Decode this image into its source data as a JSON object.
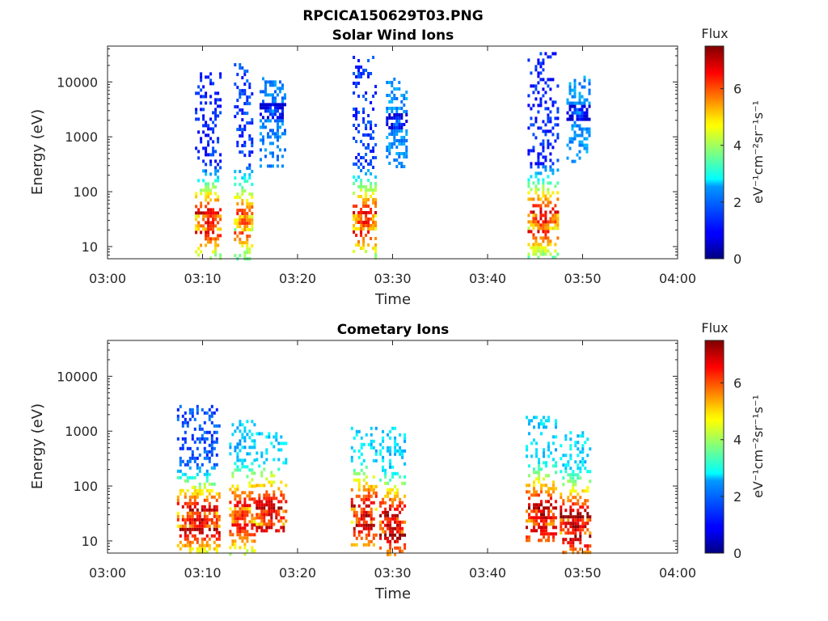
{
  "figure": {
    "title": "RPCICA150629T03.PNG"
  },
  "chart_data": [
    {
      "type": "heatmap",
      "title": "Solar Wind Ions",
      "xlabel": "Time",
      "ylabel": "Energy (eV)",
      "x_ticks": [
        "03:00",
        "03:10",
        "03:20",
        "03:30",
        "03:40",
        "03:50",
        "04:00"
      ],
      "xlim_minutes": [
        0,
        60
      ],
      "y_scale": "log",
      "ylim": [
        6,
        45000
      ],
      "y_ticks": [
        10,
        100,
        1000,
        10000
      ],
      "y_tick_labels": [
        "10",
        "100",
        "1000",
        "10000"
      ],
      "colorbar": {
        "title": "Flux",
        "label": "eV⁻¹cm⁻²sr⁻¹s⁻¹",
        "range": [
          0,
          7.5
        ],
        "ticks": [
          0,
          2,
          4,
          6
        ],
        "colormap": "jet"
      },
      "grid": false,
      "bursts": [
        {
          "t_start": 9.2,
          "t_end": 11.8,
          "e_low": 6,
          "e_high": 15000,
          "peak_flux": 7.0,
          "peak_energy": 30,
          "high_energy_flux": 1.2
        },
        {
          "t_start": 13.3,
          "t_end": 15.3,
          "e_low": 6,
          "e_high": 22000,
          "peak_flux": 6.3,
          "peak_energy": 30,
          "high_energy_flux": 1.4
        },
        {
          "t_start": 16.0,
          "t_end": 18.6,
          "e_low": 300,
          "e_high": 14000,
          "peak_flux": 1.9,
          "peak_energy": 3000,
          "high_energy_flux": 1.9
        },
        {
          "t_start": 25.8,
          "t_end": 28.2,
          "e_low": 6,
          "e_high": 30000,
          "peak_flux": 6.8,
          "peak_energy": 30,
          "high_energy_flux": 1.3
        },
        {
          "t_start": 29.3,
          "t_end": 31.4,
          "e_low": 300,
          "e_high": 12000,
          "peak_flux": 2.0,
          "peak_energy": 2000,
          "high_energy_flux": 2.0
        },
        {
          "t_start": 44.2,
          "t_end": 47.3,
          "e_low": 6,
          "e_high": 35000,
          "peak_flux": 6.9,
          "peak_energy": 32,
          "high_energy_flux": 1.2
        },
        {
          "t_start": 48.3,
          "t_end": 50.6,
          "e_low": 350,
          "e_high": 13000,
          "peak_flux": 2.0,
          "peak_energy": 3000,
          "high_energy_flux": 2.0
        }
      ]
    },
    {
      "type": "heatmap",
      "title": "Cometary Ions",
      "xlabel": "Time",
      "ylabel": "Energy (eV)",
      "x_ticks": [
        "03:00",
        "03:10",
        "03:20",
        "03:30",
        "03:40",
        "03:50",
        "04:00"
      ],
      "xlim_minutes": [
        0,
        60
      ],
      "y_scale": "log",
      "ylim": [
        6,
        45000
      ],
      "y_ticks": [
        10,
        100,
        1000,
        10000
      ],
      "y_tick_labels": [
        "10",
        "100",
        "1000",
        "10000"
      ],
      "colorbar": {
        "title": "Flux",
        "label": "eV⁻¹cm⁻²sr⁻¹s⁻¹",
        "range": [
          0,
          7.5
        ],
        "ticks": [
          0,
          2,
          4,
          6
        ],
        "colormap": "jet"
      },
      "grid": false,
      "bursts": [
        {
          "t_start": 7.3,
          "t_end": 11.8,
          "e_low": 6,
          "e_high": 3000,
          "peak_flux": 7.3,
          "peak_energy": 25,
          "high_energy_flux": 1.5
        },
        {
          "t_start": 12.8,
          "t_end": 15.4,
          "e_low": 6,
          "e_high": 1600,
          "peak_flux": 6.9,
          "peak_energy": 30,
          "high_energy_flux": 2.4
        },
        {
          "t_start": 15.6,
          "t_end": 18.8,
          "e_low": 15,
          "e_high": 1100,
          "peak_flux": 7.3,
          "peak_energy": 30,
          "high_energy_flux": 2.5
        },
        {
          "t_start": 25.6,
          "t_end": 28.4,
          "e_low": 8,
          "e_high": 1200,
          "peak_flux": 7.2,
          "peak_energy": 30,
          "high_energy_flux": 2.5
        },
        {
          "t_start": 28.6,
          "t_end": 31.2,
          "e_low": 6,
          "e_high": 1200,
          "peak_flux": 7.5,
          "peak_energy": 20,
          "high_energy_flux": 2.5
        },
        {
          "t_start": 44.0,
          "t_end": 47.3,
          "e_low": 10,
          "e_high": 1900,
          "peak_flux": 7.3,
          "peak_energy": 30,
          "high_energy_flux": 2.5
        },
        {
          "t_start": 47.6,
          "t_end": 50.8,
          "e_low": 6,
          "e_high": 1000,
          "peak_flux": 7.5,
          "peak_energy": 20,
          "high_energy_flux": 2.6
        }
      ]
    }
  ]
}
